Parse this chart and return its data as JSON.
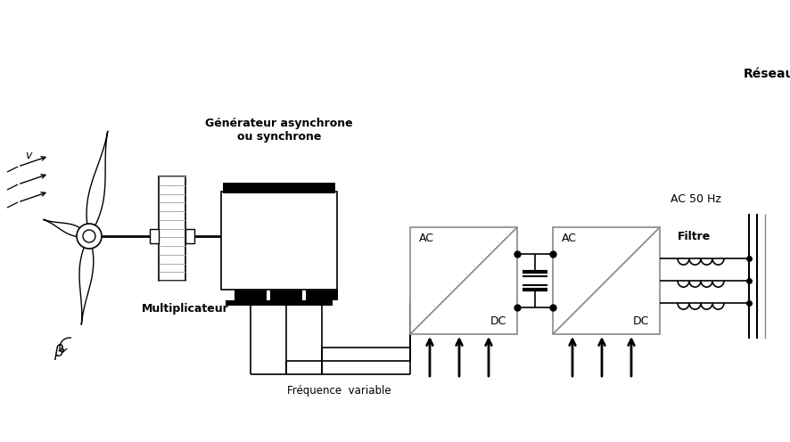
{
  "bg_color": "#ffffff",
  "line_color": "#000000",
  "gray_color": "#aaaaaa",
  "labels": {
    "generateur": "Générateur asynchrone\nou synchrone",
    "multiplicateur": "Multiplicateur",
    "frequence": "Fréquence  variable",
    "ac1": "AC",
    "dc1": "DC",
    "ac2": "AC",
    "dc2": "DC",
    "filtre": "Filtre",
    "reseau": "Réseau",
    "ac50": "AC 50 Hz",
    "beta": "β",
    "v": "v"
  },
  "figsize": [
    8.87,
    4.96
  ],
  "dpi": 100
}
